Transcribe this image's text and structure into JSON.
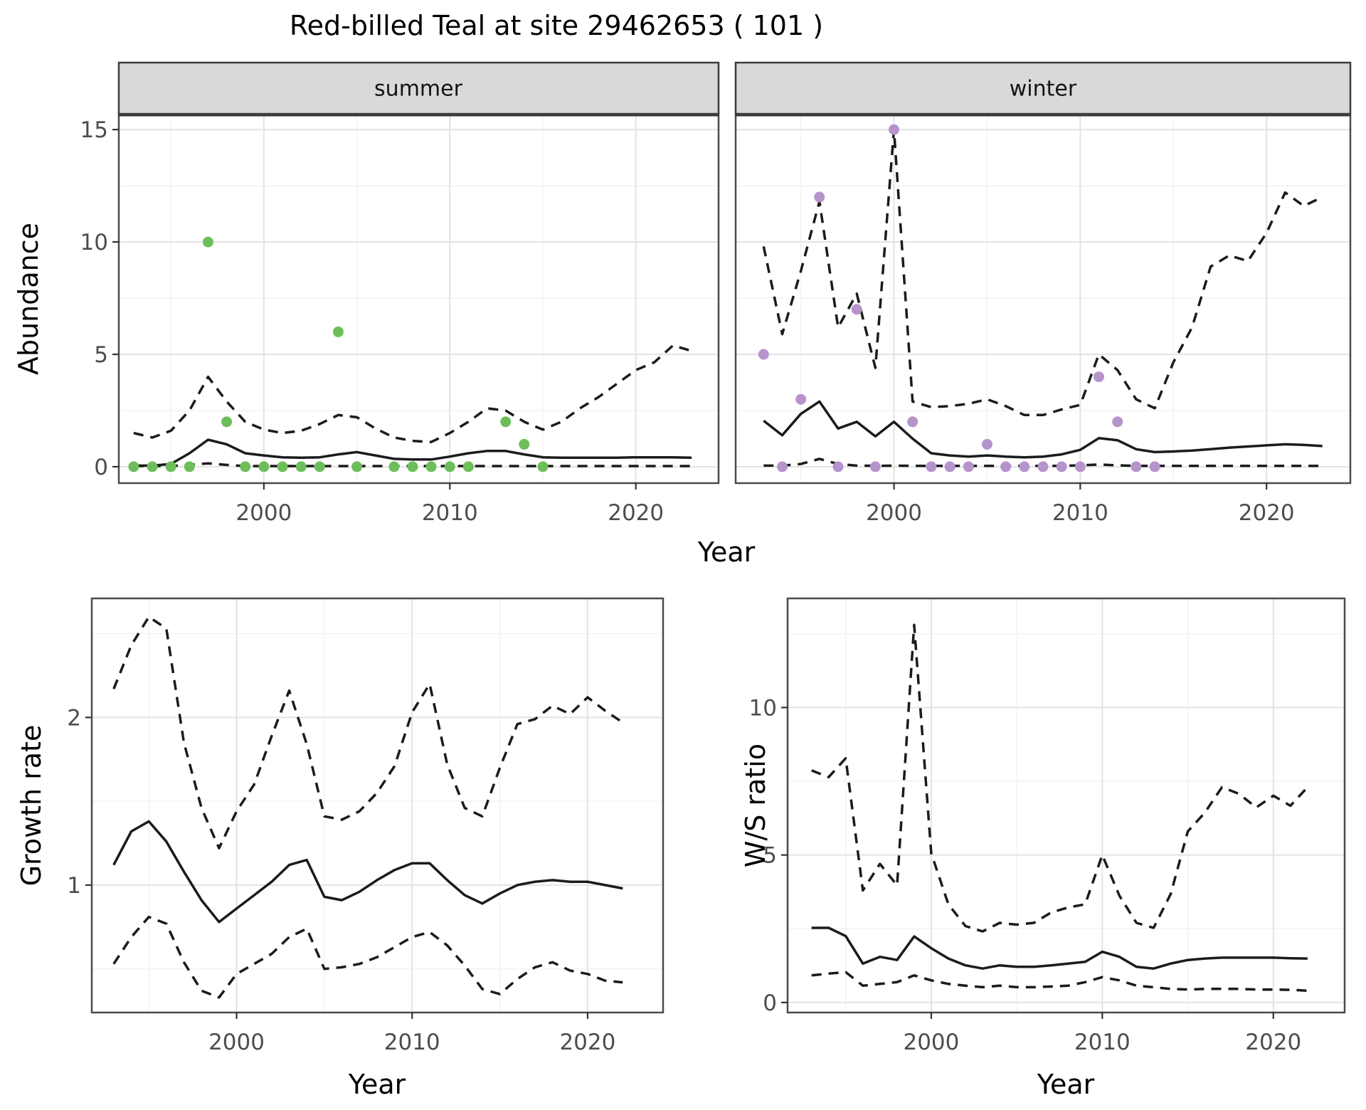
{
  "title": "Red-billed Teal at site 29462653 ( 101 )",
  "colors": {
    "line": "#1b1b1b",
    "summer_point": "#6dbe5b",
    "winter_point": "#b793cb",
    "grid_major": "#e3e3e3",
    "grid_minor": "#f1f1f1",
    "panel_border": "#4b4b4b",
    "strip_fill": "#d9d9d9",
    "tick_text": "#4d4d4d",
    "panel_bg": "#ffffff"
  },
  "chart_data": [
    {
      "id": "abundance_summer",
      "type": "line+scatter",
      "facet": "summer",
      "ylabel": "Abundance",
      "xlabel": "Year",
      "xlim": [
        1992.2,
        2024.45
      ],
      "ylim": [
        -0.73,
        15.7
      ],
      "xticks": {
        "values": [
          2000,
          2010,
          2020
        ],
        "labels": [
          "2000",
          "2010",
          "2020"
        ],
        "minor": [
          1995,
          2005,
          2015
        ]
      },
      "yticks": {
        "values": [
          0,
          5,
          10,
          15
        ],
        "labels": [
          "0",
          "5",
          "10",
          "15"
        ],
        "minor": [
          2.5,
          7.5,
          12.5
        ]
      },
      "points": {
        "years": [
          1993,
          1994,
          1995,
          1996,
          1997,
          1998,
          1999,
          2000,
          2001,
          2002,
          2003,
          2004,
          2005,
          2007,
          2008,
          2009,
          2010,
          2011,
          2013,
          2014,
          2015
        ],
        "values": [
          0,
          0,
          0,
          0,
          10,
          2,
          0,
          0,
          0,
          0,
          0,
          6,
          0,
          0,
          0,
          0,
          0,
          0,
          2,
          1,
          0
        ]
      },
      "series": [
        {
          "name": "ci_upper_95",
          "style": "dashed",
          "years": [
            1993,
            1994,
            1995,
            1996,
            1997,
            1998,
            1999,
            2000,
            2001,
            2002,
            2003,
            2004,
            2005,
            2006,
            2007,
            2008,
            2009,
            2010,
            2011,
            2012,
            2013,
            2014,
            2015,
            2016,
            2017,
            2018,
            2019,
            2020,
            2021,
            2022,
            2023
          ],
          "values": [
            1.5,
            1.3,
            1.6,
            2.5,
            4.0,
            2.9,
            2.0,
            1.65,
            1.5,
            1.6,
            1.9,
            2.3,
            2.2,
            1.7,
            1.3,
            1.15,
            1.1,
            1.5,
            2.0,
            2.6,
            2.5,
            2.0,
            1.65,
            2.0,
            2.6,
            3.1,
            3.7,
            4.3,
            4.65,
            5.4,
            5.15
          ]
        },
        {
          "name": "ci_lower_95",
          "style": "dashed",
          "years": [
            1993,
            1994,
            1995,
            1996,
            1997,
            1998,
            1999,
            2000,
            2001,
            2002,
            2003,
            2004,
            2005,
            2006,
            2007,
            2008,
            2009,
            2010,
            2011,
            2012,
            2013,
            2014,
            2015,
            2016,
            2017,
            2018,
            2019,
            2020,
            2021,
            2022,
            2023
          ],
          "values": [
            0.03,
            0.03,
            0.03,
            0.08,
            0.15,
            0.08,
            0.03,
            0.03,
            0.03,
            0.03,
            0.03,
            0.03,
            0.03,
            0.03,
            0.03,
            0.03,
            0.03,
            0.03,
            0.03,
            0.03,
            0.03,
            0.03,
            0.03,
            0.03,
            0.03,
            0.03,
            0.03,
            0.03,
            0.03,
            0.03,
            0.03
          ]
        },
        {
          "name": "mean",
          "style": "solid",
          "years": [
            1993,
            1994,
            1995,
            1996,
            1997,
            1998,
            1999,
            2000,
            2001,
            2002,
            2003,
            2004,
            2005,
            2006,
            2007,
            2008,
            2009,
            2010,
            2011,
            2012,
            2013,
            2014,
            2015,
            2016,
            2017,
            2018,
            2019,
            2020,
            2021,
            2022,
            2023
          ],
          "values": [
            0.05,
            0.05,
            0.12,
            0.6,
            1.2,
            1.0,
            0.6,
            0.5,
            0.42,
            0.4,
            0.42,
            0.55,
            0.65,
            0.5,
            0.35,
            0.32,
            0.32,
            0.45,
            0.6,
            0.7,
            0.7,
            0.55,
            0.42,
            0.4,
            0.4,
            0.4,
            0.4,
            0.42,
            0.42,
            0.42,
            0.4
          ]
        }
      ]
    },
    {
      "id": "abundance_winter",
      "type": "line+scatter",
      "facet": "winter",
      "ylabel": "Abundance",
      "xlabel": "Year",
      "xlim": [
        1991.5,
        2024.5
      ],
      "ylim": [
        -0.73,
        15.7
      ],
      "xticks": {
        "values": [
          2000,
          2010,
          2020
        ],
        "labels": [
          "2000",
          "2010",
          "2020"
        ],
        "minor": [
          1995,
          2005,
          2015
        ]
      },
      "yticks": {
        "values": [
          0,
          5,
          10,
          15
        ],
        "labels": [
          "0",
          "5",
          "10",
          "15"
        ],
        "minor": [
          2.5,
          7.5,
          12.5
        ]
      },
      "points": {
        "years": [
          1993,
          1994,
          1995,
          1996,
          1997,
          1998,
          1999,
          2000,
          2001,
          2002,
          2003,
          2004,
          2005,
          2006,
          2007,
          2008,
          2009,
          2010,
          2011,
          2012,
          2013,
          2014
        ],
        "values": [
          5,
          0,
          3,
          12,
          0,
          7,
          0,
          15,
          2,
          0,
          0,
          0,
          1,
          0,
          0,
          0,
          0,
          0,
          4,
          2,
          0,
          0
        ]
      },
      "series": [
        {
          "name": "ci_upper_95",
          "style": "dashed",
          "years": [
            1993,
            1994,
            1995,
            1996,
            1997,
            1998,
            1999,
            2000,
            2001,
            2002,
            2003,
            2004,
            2005,
            2006,
            2007,
            2008,
            2009,
            2010,
            2011,
            2012,
            2013,
            2014,
            2015,
            2016,
            2017,
            2018,
            2019,
            2020,
            2021,
            2022,
            2023
          ],
          "values": [
            9.8,
            5.9,
            8.7,
            11.8,
            6.2,
            7.7,
            4.4,
            15.0,
            2.9,
            2.65,
            2.7,
            2.8,
            3.0,
            2.7,
            2.3,
            2.3,
            2.55,
            2.75,
            5.0,
            4.3,
            3.0,
            2.6,
            4.65,
            6.2,
            8.9,
            9.4,
            9.15,
            10.4,
            12.2,
            11.6,
            12.0
          ]
        },
        {
          "name": "ci_lower_95",
          "style": "dashed",
          "years": [
            1993,
            1994,
            1995,
            1996,
            1997,
            1998,
            1999,
            2000,
            2001,
            2002,
            2003,
            2004,
            2005,
            2006,
            2007,
            2008,
            2009,
            2010,
            2011,
            2012,
            2013,
            2014,
            2015,
            2016,
            2017,
            2018,
            2019,
            2020,
            2021,
            2022,
            2023
          ],
          "values": [
            0.05,
            0.05,
            0.12,
            0.35,
            0.12,
            0.05,
            0.04,
            0.05,
            0.04,
            0.04,
            0.04,
            0.04,
            0.04,
            0.04,
            0.04,
            0.04,
            0.04,
            0.06,
            0.1,
            0.06,
            0.04,
            0.04,
            0.04,
            0.04,
            0.04,
            0.04,
            0.04,
            0.04,
            0.04,
            0.04,
            0.04
          ]
        },
        {
          "name": "mean",
          "style": "solid",
          "years": [
            1993,
            1994,
            1995,
            1996,
            1997,
            1998,
            1999,
            2000,
            2001,
            2002,
            2003,
            2004,
            2005,
            2006,
            2007,
            2008,
            2009,
            2010,
            2011,
            2012,
            2013,
            2014,
            2015,
            2016,
            2017,
            2018,
            2019,
            2020,
            2021,
            2022,
            2023
          ],
          "values": [
            2.05,
            1.4,
            2.35,
            2.9,
            1.7,
            2.0,
            1.35,
            2.0,
            1.25,
            0.6,
            0.5,
            0.45,
            0.5,
            0.45,
            0.42,
            0.45,
            0.55,
            0.75,
            1.27,
            1.18,
            0.78,
            0.65,
            0.68,
            0.72,
            0.78,
            0.85,
            0.9,
            0.95,
            1.0,
            0.97,
            0.92
          ]
        }
      ]
    },
    {
      "id": "growth_rate",
      "type": "line",
      "ylabel": "Growth rate",
      "xlabel": "Year",
      "xlim": [
        1991.75,
        2024.3
      ],
      "ylim": [
        0.24,
        2.71
      ],
      "xticks": {
        "values": [
          2000,
          2010,
          2020
        ],
        "labels": [
          "2000",
          "2010",
          "2020"
        ],
        "minor": [
          1995,
          2005,
          2015
        ]
      },
      "yticks": {
        "values": [
          1,
          2
        ],
        "labels": [
          "1",
          "2"
        ],
        "minor": [
          0.5,
          1.5,
          2.5
        ]
      },
      "series": [
        {
          "name": "ci_upper_95",
          "style": "dashed",
          "years": [
            1993,
            1994,
            1995,
            1996,
            1997,
            1998,
            1999,
            2000,
            2001,
            2002,
            2003,
            2004,
            2005,
            2006,
            2007,
            2008,
            2009,
            2010,
            2011,
            2012,
            2013,
            2014,
            2015,
            2016,
            2017,
            2018,
            2019,
            2020,
            2021,
            2022
          ],
          "values": [
            2.17,
            2.43,
            2.6,
            2.53,
            1.85,
            1.46,
            1.22,
            1.44,
            1.6,
            1.89,
            2.16,
            1.84,
            1.41,
            1.39,
            1.44,
            1.55,
            1.71,
            2.03,
            2.2,
            1.72,
            1.46,
            1.41,
            1.7,
            1.96,
            1.99,
            2.07,
            2.02,
            2.12,
            2.04,
            1.97
          ]
        },
        {
          "name": "ci_lower_95",
          "style": "dashed",
          "years": [
            1993,
            1994,
            1995,
            1996,
            1997,
            1998,
            1999,
            2000,
            2001,
            2002,
            2003,
            2004,
            2005,
            2006,
            2007,
            2008,
            2009,
            2010,
            2011,
            2012,
            2013,
            2014,
            2015,
            2016,
            2017,
            2018,
            2019,
            2020,
            2021,
            2022
          ],
          "values": [
            0.53,
            0.69,
            0.81,
            0.77,
            0.54,
            0.37,
            0.33,
            0.47,
            0.53,
            0.59,
            0.69,
            0.74,
            0.5,
            0.51,
            0.53,
            0.57,
            0.63,
            0.69,
            0.72,
            0.64,
            0.52,
            0.38,
            0.35,
            0.44,
            0.51,
            0.54,
            0.49,
            0.47,
            0.43,
            0.42
          ]
        },
        {
          "name": "mean",
          "style": "solid",
          "years": [
            1993,
            1994,
            1995,
            1996,
            1997,
            1998,
            1999,
            2000,
            2001,
            2002,
            2003,
            2004,
            2005,
            2006,
            2007,
            2008,
            2009,
            2010,
            2011,
            2012,
            2013,
            2014,
            2015,
            2016,
            2017,
            2018,
            2019,
            2020,
            2021,
            2022
          ],
          "values": [
            1.12,
            1.32,
            1.38,
            1.26,
            1.08,
            0.91,
            0.78,
            0.86,
            0.94,
            1.02,
            1.12,
            1.15,
            0.93,
            0.91,
            0.96,
            1.03,
            1.09,
            1.13,
            1.13,
            1.03,
            0.94,
            0.89,
            0.95,
            1.0,
            1.02,
            1.03,
            1.02,
            1.02,
            1.0,
            0.98
          ]
        }
      ]
    },
    {
      "id": "ws_ratio",
      "type": "line",
      "ylabel": "W/S ratio",
      "xlabel": "Year",
      "xlim": [
        1991.6,
        2024.17
      ],
      "ylim": [
        -0.34,
        13.7
      ],
      "xticks": {
        "values": [
          2000,
          2010,
          2020
        ],
        "labels": [
          "2000",
          "2010",
          "2020"
        ],
        "minor": [
          1995,
          2005,
          2015
        ]
      },
      "yticks": {
        "values": [
          0,
          5,
          10
        ],
        "labels": [
          "0",
          "5",
          "10"
        ],
        "minor": [
          2.5,
          7.5,
          12.5
        ]
      },
      "series": [
        {
          "name": "ci_upper_95",
          "style": "dashed",
          "years": [
            1993,
            1994,
            1995,
            1996,
            1997,
            1998,
            1999,
            2000,
            2001,
            2002,
            2003,
            2004,
            2005,
            2006,
            2007,
            2008,
            2009,
            2010,
            2011,
            2012,
            2013,
            2014,
            2015,
            2016,
            2017,
            2018,
            2019,
            2020,
            2021,
            2022
          ],
          "values": [
            7.87,
            7.64,
            8.28,
            3.8,
            4.7,
            3.97,
            12.8,
            5.06,
            3.33,
            2.59,
            2.41,
            2.7,
            2.64,
            2.7,
            3.05,
            3.22,
            3.33,
            5.0,
            3.62,
            2.7,
            2.53,
            3.68,
            5.8,
            6.44,
            7.3,
            7.07,
            6.61,
            7.01,
            6.67,
            7.3
          ]
        },
        {
          "name": "ci_lower_95",
          "style": "dashed",
          "years": [
            1993,
            1994,
            1995,
            1996,
            1997,
            1998,
            1999,
            2000,
            2001,
            2002,
            2003,
            2004,
            2005,
            2006,
            2007,
            2008,
            2009,
            2010,
            2011,
            2012,
            2013,
            2014,
            2015,
            2016,
            2017,
            2018,
            2019,
            2020,
            2021,
            2022
          ],
          "values": [
            0.92,
            0.98,
            1.03,
            0.57,
            0.63,
            0.69,
            0.92,
            0.75,
            0.63,
            0.57,
            0.52,
            0.57,
            0.52,
            0.52,
            0.54,
            0.57,
            0.69,
            0.86,
            0.75,
            0.57,
            0.52,
            0.46,
            0.44,
            0.46,
            0.46,
            0.46,
            0.44,
            0.44,
            0.43,
            0.4
          ]
        },
        {
          "name": "mean",
          "style": "solid",
          "years": [
            1993,
            1994,
            1995,
            1996,
            1997,
            1998,
            1999,
            2000,
            2001,
            2002,
            2003,
            2004,
            2005,
            2006,
            2007,
            2008,
            2009,
            2010,
            2011,
            2012,
            2013,
            2014,
            2015,
            2016,
            2017,
            2018,
            2019,
            2020,
            2021,
            2022
          ],
          "values": [
            2.53,
            2.53,
            2.25,
            1.32,
            1.55,
            1.44,
            2.24,
            1.84,
            1.49,
            1.26,
            1.15,
            1.26,
            1.21,
            1.21,
            1.26,
            1.32,
            1.38,
            1.72,
            1.55,
            1.21,
            1.15,
            1.32,
            1.44,
            1.49,
            1.52,
            1.52,
            1.52,
            1.52,
            1.5,
            1.49
          ]
        }
      ]
    }
  ]
}
